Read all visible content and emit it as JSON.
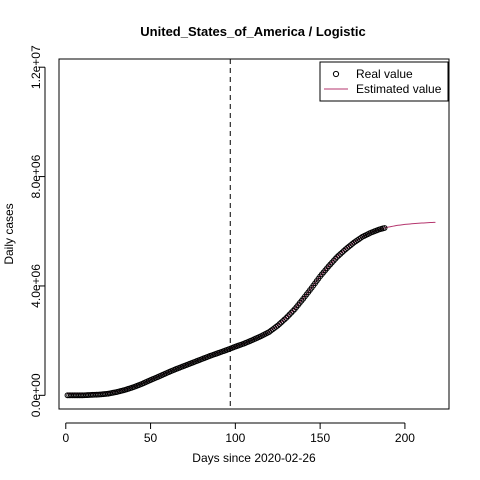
{
  "chart_data": {
    "type": "scatter",
    "title": "United_States_of_America / Logistic",
    "xlabel": "Days since 2020-02-26",
    "ylabel": "Daily cases",
    "xlim": [
      -4,
      226
    ],
    "ylim": [
      -500000,
      12300000
    ],
    "x_ticks": [
      {
        "value": 0,
        "label": "0"
      },
      {
        "value": 50,
        "label": "50"
      },
      {
        "value": 100,
        "label": "100"
      },
      {
        "value": 150,
        "label": "150"
      },
      {
        "value": 200,
        "label": "200"
      }
    ],
    "y_ticks": [
      {
        "value": 0,
        "label": "0.0e+00"
      },
      {
        "value": 4000000,
        "label": "4.0e+06"
      },
      {
        "value": 8000000,
        "label": "8.0e+06"
      },
      {
        "value": 12000000,
        "label": "1.2e+07"
      }
    ],
    "vline_x": 97,
    "grid": false,
    "legend_position": "top-right",
    "series": [
      {
        "name": "Real value",
        "style": "points",
        "color": "#000000",
        "x_start": 1,
        "x_end": 188,
        "anchor_x": [
          1,
          10,
          20,
          25,
          30,
          35,
          40,
          45,
          50,
          55,
          60,
          65,
          70,
          75,
          80,
          85,
          90,
          95,
          100,
          105,
          110,
          115,
          120,
          125,
          130,
          135,
          140,
          145,
          150,
          155,
          160,
          165,
          170,
          175,
          180,
          185,
          188
        ],
        "anchor_y": [
          15,
          1000,
          30000,
          60000,
          120000,
          200000,
          300000,
          420000,
          560000,
          690000,
          830000,
          960000,
          1080000,
          1200000,
          1320000,
          1440000,
          1550000,
          1660000,
          1780000,
          1890000,
          2020000,
          2160000,
          2320000,
          2550000,
          2830000,
          3150000,
          3530000,
          3930000,
          4350000,
          4720000,
          5060000,
          5340000,
          5590000,
          5800000,
          5950000,
          6070000,
          6120000
        ]
      },
      {
        "name": "Estimated value",
        "style": "line",
        "color": "#b5366e",
        "x_start": 1,
        "x_end": 218,
        "anchor_x": [
          1,
          10,
          20,
          25,
          30,
          35,
          40,
          45,
          50,
          55,
          60,
          65,
          70,
          75,
          80,
          85,
          90,
          95,
          100,
          105,
          110,
          115,
          120,
          125,
          130,
          135,
          140,
          145,
          150,
          155,
          160,
          165,
          170,
          175,
          180,
          185,
          190,
          195,
          200,
          205,
          210,
          215,
          218
        ],
        "anchor_y": [
          60000,
          70000,
          80000,
          90000,
          140000,
          220000,
          320000,
          440000,
          580000,
          710000,
          850000,
          980000,
          1100000,
          1220000,
          1340000,
          1460000,
          1570000,
          1680000,
          1790000,
          1900000,
          2030000,
          2170000,
          2330000,
          2560000,
          2840000,
          3160000,
          3540000,
          3940000,
          4360000,
          4730000,
          5070000,
          5350000,
          5600000,
          5810000,
          5960000,
          6080000,
          6150000,
          6210000,
          6250000,
          6280000,
          6300000,
          6320000,
          6325000
        ]
      }
    ]
  }
}
